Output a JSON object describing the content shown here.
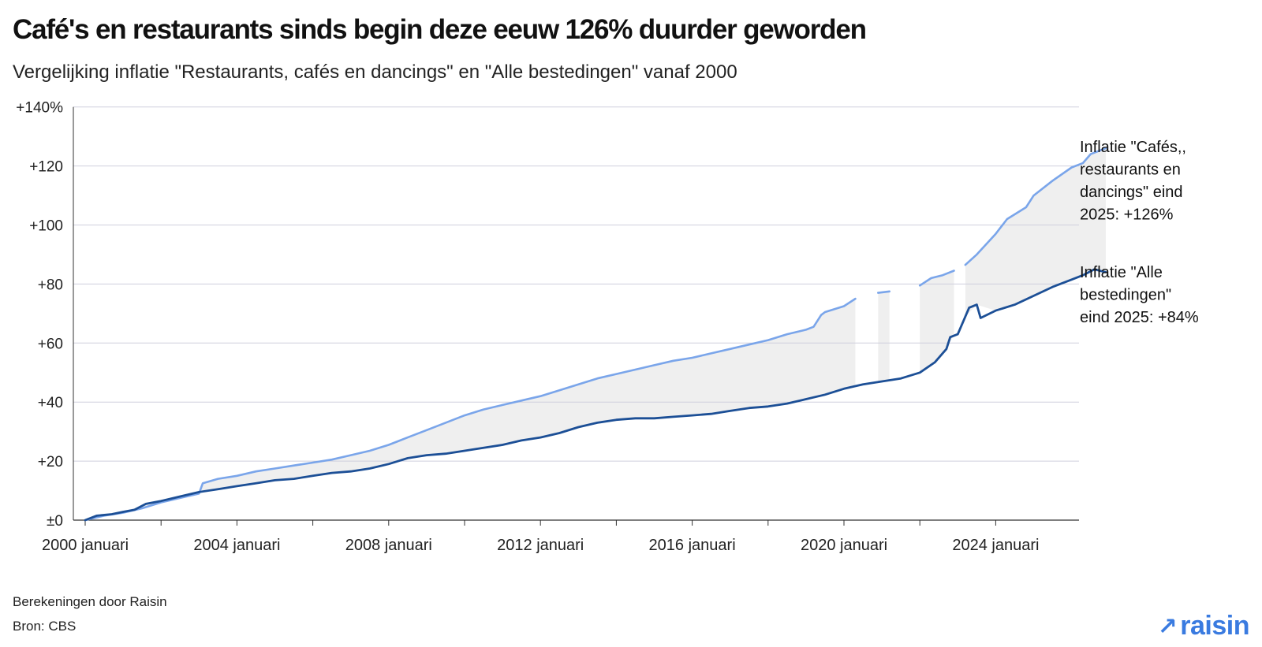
{
  "title": "Café's en restaurants sinds begin deze eeuw 126% duurder geworden",
  "subtitle": "Vergelijking inflatie \"Restaurants, cafés en dancings\" en \"Alle bestedingen\" vanaf 2000",
  "footer": {
    "line1": "Berekeningen door Raisin",
    "line2": "Bron: CBS"
  },
  "logo": {
    "arrow": "↗",
    "text": "raisin"
  },
  "colors": {
    "restaurants": "#7aa5ea",
    "alle": "#1c4f96",
    "fill": "#efefef",
    "grid": "#cfcfdd",
    "axis": "#333333"
  },
  "chart_data": {
    "type": "line",
    "ylim": [
      0,
      140
    ],
    "y_ticks": [
      {
        "value": 140,
        "label": "+140%"
      },
      {
        "value": 120,
        "label": "+120"
      },
      {
        "value": 100,
        "label": "+100"
      },
      {
        "value": 80,
        "label": "+80"
      },
      {
        "value": 60,
        "label": "+60"
      },
      {
        "value": 40,
        "label": "+40"
      },
      {
        "value": 20,
        "label": "+20"
      },
      {
        "value": 0,
        "label": "±0"
      }
    ],
    "x_ticks": [
      {
        "year": 2000,
        "label": "2000 januari"
      },
      {
        "year": 2004,
        "label": "2004 januari"
      },
      {
        "year": 2008,
        "label": "2008 januari"
      },
      {
        "year": 2012,
        "label": "2012 januari"
      },
      {
        "year": 2016,
        "label": "2016 januari"
      },
      {
        "year": 2020,
        "label": "2020 januari"
      },
      {
        "year": 2024,
        "label": "2024 januari"
      }
    ],
    "x_minor_ticks": [
      2002,
      2006,
      2010,
      2014,
      2018,
      2022
    ],
    "grid": true,
    "series": [
      {
        "key": "restaurants",
        "label": "Inflatie \"Cafés,, restaurants en dancings\" eind 2025: +126%",
        "label_lines": [
          "Inflatie \"Cafés,,",
          "restaurants en",
          "dancings\" eind",
          "2025: +126%"
        ],
        "points": [
          [
            2000.0,
            0
          ],
          [
            2000.5,
            1.5
          ],
          [
            2001.0,
            2.5
          ],
          [
            2001.5,
            4
          ],
          [
            2002.0,
            6
          ],
          [
            2002.5,
            7.5
          ],
          [
            2003.0,
            9
          ],
          [
            2003.1,
            12.5
          ],
          [
            2003.5,
            14
          ],
          [
            2004.0,
            15
          ],
          [
            2004.5,
            16.5
          ],
          [
            2005.0,
            17.5
          ],
          [
            2005.5,
            18.5
          ],
          [
            2006.0,
            19.5
          ],
          [
            2006.5,
            20.5
          ],
          [
            2007.0,
            22
          ],
          [
            2007.5,
            23.5
          ],
          [
            2008.0,
            25.5
          ],
          [
            2008.5,
            28
          ],
          [
            2009.0,
            30.5
          ],
          [
            2009.5,
            33
          ],
          [
            2010.0,
            35.5
          ],
          [
            2010.5,
            37.5
          ],
          [
            2011.0,
            39
          ],
          [
            2011.5,
            40.5
          ],
          [
            2012.0,
            42
          ],
          [
            2012.5,
            44
          ],
          [
            2013.0,
            46
          ],
          [
            2013.5,
            48
          ],
          [
            2014.0,
            49.5
          ],
          [
            2014.5,
            51
          ],
          [
            2015.0,
            52.5
          ],
          [
            2015.5,
            54
          ],
          [
            2016.0,
            55
          ],
          [
            2016.5,
            56.5
          ],
          [
            2017.0,
            58
          ],
          [
            2017.5,
            59.5
          ],
          [
            2018.0,
            61
          ],
          [
            2018.5,
            63
          ],
          [
            2019.0,
            64.5
          ],
          [
            2019.2,
            65.5
          ],
          [
            2019.4,
            69.5
          ],
          [
            2019.5,
            70.5
          ],
          [
            2020.0,
            72.5
          ],
          [
            2020.3,
            75
          ]
        ],
        "segments": [
          [
            [
              2020.9,
              77
            ],
            [
              2021.2,
              77.5
            ]
          ],
          [
            [
              2022.0,
              79.5
            ],
            [
              2022.3,
              82
            ],
            [
              2022.6,
              83
            ],
            [
              2022.9,
              84.5
            ]
          ],
          [
            [
              2023.2,
              86.5
            ],
            [
              2023.5,
              90
            ],
            [
              2024.0,
              97
            ],
            [
              2024.3,
              102
            ],
            [
              2024.8,
              106
            ],
            [
              2025.0,
              110
            ],
            [
              2025.5,
              115
            ],
            [
              2026.0,
              119.5
            ],
            [
              2026.3,
              121
            ],
            [
              2026.5,
              124
            ],
            [
              2026.9,
              126
            ]
          ]
        ]
      },
      {
        "key": "alle",
        "label": "Inflatie \"Alle bestedingen\" eind 2025: +84%",
        "label_lines": [
          "Inflatie \"Alle",
          "bestedingen\"",
          "eind 2025: +84%"
        ],
        "points": [
          [
            2000.0,
            0
          ],
          [
            2000.3,
            1.5
          ],
          [
            2000.7,
            2
          ],
          [
            2001.0,
            2.8
          ],
          [
            2001.3,
            3.5
          ],
          [
            2001.6,
            5.5
          ],
          [
            2002.0,
            6.5
          ],
          [
            2002.5,
            8
          ],
          [
            2003.0,
            9.5
          ],
          [
            2003.5,
            10.5
          ],
          [
            2004.0,
            11.5
          ],
          [
            2004.5,
            12.5
          ],
          [
            2005.0,
            13.5
          ],
          [
            2005.5,
            14
          ],
          [
            2006.0,
            15
          ],
          [
            2006.5,
            16
          ],
          [
            2007.0,
            16.5
          ],
          [
            2007.5,
            17.5
          ],
          [
            2008.0,
            19
          ],
          [
            2008.5,
            21
          ],
          [
            2009.0,
            22
          ],
          [
            2009.5,
            22.5
          ],
          [
            2010.0,
            23.5
          ],
          [
            2010.5,
            24.5
          ],
          [
            2011.0,
            25.5
          ],
          [
            2011.5,
            27
          ],
          [
            2012.0,
            28
          ],
          [
            2012.5,
            29.5
          ],
          [
            2013.0,
            31.5
          ],
          [
            2013.5,
            33
          ],
          [
            2014.0,
            34
          ],
          [
            2014.5,
            34.5
          ],
          [
            2015.0,
            34.5
          ],
          [
            2015.5,
            35
          ],
          [
            2016.0,
            35.5
          ],
          [
            2016.5,
            36
          ],
          [
            2017.0,
            37
          ],
          [
            2017.5,
            38
          ],
          [
            2018.0,
            38.5
          ],
          [
            2018.5,
            39.5
          ],
          [
            2019.0,
            41
          ],
          [
            2019.5,
            42.5
          ],
          [
            2020.0,
            44.5
          ],
          [
            2020.5,
            46
          ],
          [
            2021.0,
            47
          ],
          [
            2021.5,
            48
          ],
          [
            2022.0,
            50
          ],
          [
            2022.4,
            53.5
          ],
          [
            2022.7,
            58
          ],
          [
            2022.8,
            62
          ],
          [
            2023.0,
            63
          ],
          [
            2023.3,
            72
          ],
          [
            2023.5,
            73
          ],
          [
            2023.6,
            68.5
          ],
          [
            2024.0,
            71
          ],
          [
            2024.5,
            73
          ],
          [
            2025.0,
            76
          ],
          [
            2025.5,
            79
          ],
          [
            2026.0,
            81.5
          ],
          [
            2026.3,
            83
          ],
          [
            2026.6,
            85
          ],
          [
            2026.9,
            84
          ]
        ]
      }
    ]
  }
}
